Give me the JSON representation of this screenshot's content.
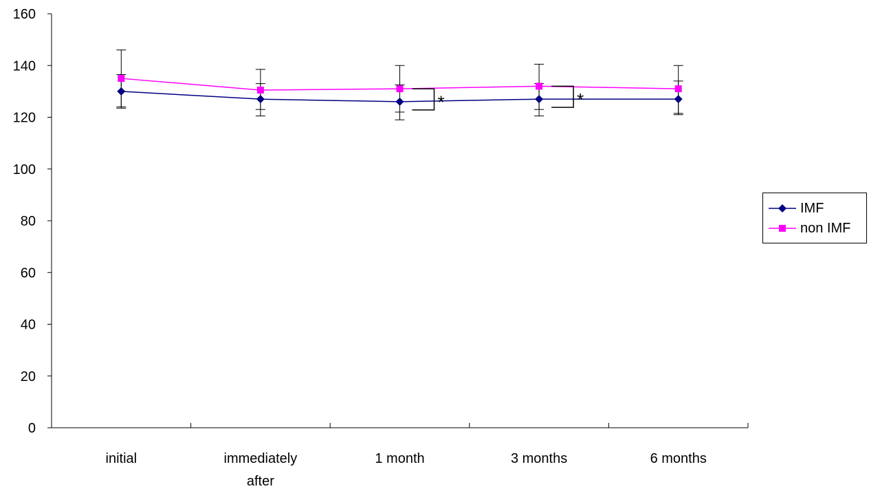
{
  "chart_data": {
    "type": "line",
    "categories": [
      [
        "initial"
      ],
      [
        "immediately",
        "after"
      ],
      [
        "1 month"
      ],
      [
        "3 months"
      ],
      [
        "6 months"
      ]
    ],
    "ylim": [
      0,
      160
    ],
    "yticks": [
      0,
      20,
      40,
      60,
      80,
      100,
      120,
      140,
      160
    ],
    "grid": false,
    "legend_position": "right",
    "series": [
      {
        "name": "IMF",
        "color": "#000080",
        "marker": "diamond",
        "values": [
          130,
          127,
          126,
          127,
          127
        ],
        "error_low": [
          124,
          120.5,
          119,
          120.5,
          121.5
        ],
        "error_high": [
          136.5,
          133,
          132.5,
          133,
          134
        ]
      },
      {
        "name": "non IMF",
        "color": "#FF00FF",
        "marker": "square",
        "values": [
          135,
          130.5,
          131,
          132,
          131
        ],
        "error_low": [
          123.5,
          123,
          122,
          123,
          121
        ],
        "error_high": [
          146,
          138.5,
          140,
          140.5,
          140
        ]
      }
    ],
    "annotations": [
      {
        "text": "*",
        "category_index": 2
      },
      {
        "text": "*",
        "category_index": 3
      }
    ]
  }
}
